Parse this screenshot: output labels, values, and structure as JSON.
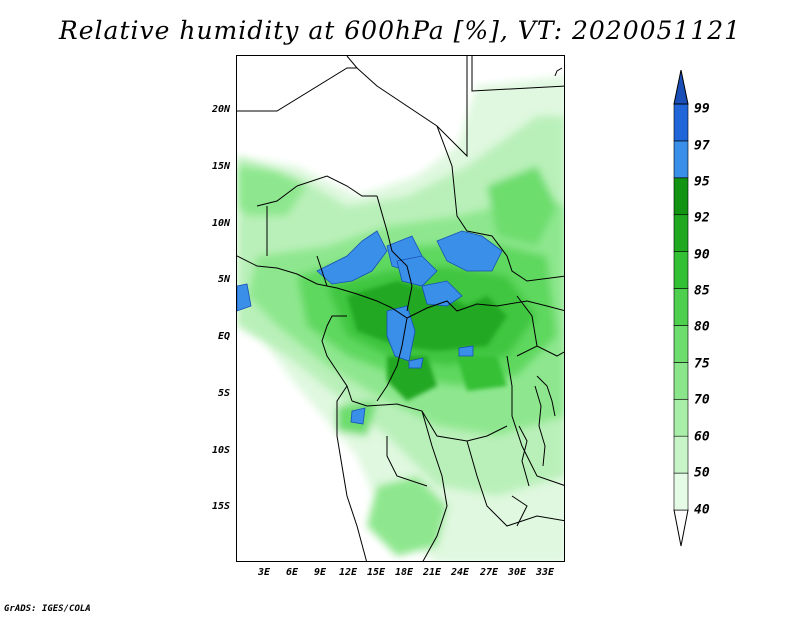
{
  "title": "Relative humidity at 600hPa [%], VT: 2020051121",
  "credit": "GrADS: IGES/COLA",
  "lat_labels": [
    "20N",
    "15N",
    "10N",
    "5N",
    "EQ",
    "5S",
    "10S",
    "15S"
  ],
  "lon_labels": [
    "3E",
    "6E",
    "9E",
    "12E",
    "15E",
    "18E",
    "21E",
    "24E",
    "27E",
    "30E",
    "33E"
  ],
  "colorbar": {
    "levels": [
      "40",
      "50",
      "60",
      "70",
      "75",
      "80",
      "85",
      "90",
      "92",
      "95",
      "97",
      "99"
    ],
    "colors": [
      "#ffffff",
      "#e6fbe6",
      "#c8f5c8",
      "#a8eda8",
      "#8be68b",
      "#6ddd6d",
      "#4ed04e",
      "#34c034",
      "#21a821",
      "#129412",
      "#3a8fe8",
      "#2166d8",
      "#1a4fb8"
    ]
  }
}
